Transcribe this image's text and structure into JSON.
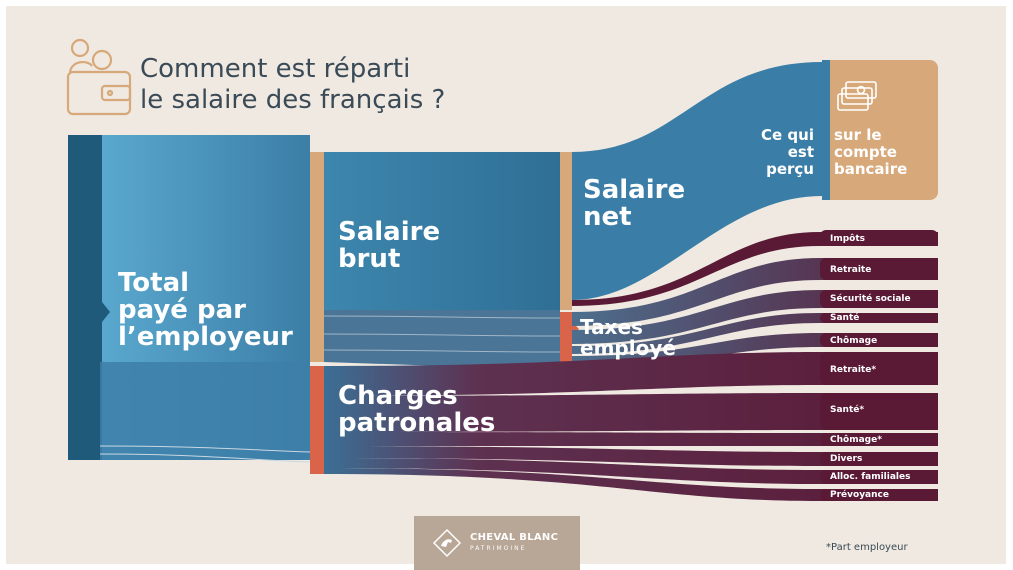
{
  "title_line1": "Comment est réparti",
  "title_line2": "le salaire des français ?",
  "nodes": {
    "total": [
      "Total",
      "payé par",
      "l’employeur"
    ],
    "brut": [
      "Salaire",
      "brut"
    ],
    "net": [
      "Salaire",
      "net"
    ],
    "percu": [
      "Ce qui",
      "est",
      "perçu"
    ],
    "compte": [
      "sur le",
      "compte",
      "bancaire"
    ],
    "taxes": [
      "Taxes",
      "employé"
    ],
    "charges": [
      "Charges",
      "patronales"
    ]
  },
  "employee_taxes": [
    "Impôts",
    "Retraite",
    "Sécurité sociale",
    "Santé",
    "Chômage"
  ],
  "employer_charges": [
    "Retraite*",
    "Santé*",
    "Chômage*",
    "Divers",
    "Alloc. familiales",
    "Prévoyance"
  ],
  "footnote": "*Part employeur",
  "logo": {
    "name": "CHEVAL BLANC",
    "sub": "PATRIMOINE"
  },
  "colors": {
    "background": "#efe9e1",
    "blue": "#3d86ad",
    "dark_blue": "#1f5a7b",
    "tan": "#d7a87a",
    "maroon": "#5c1a36",
    "salmon": "#d9644a",
    "text": "#3a4a57"
  }
}
